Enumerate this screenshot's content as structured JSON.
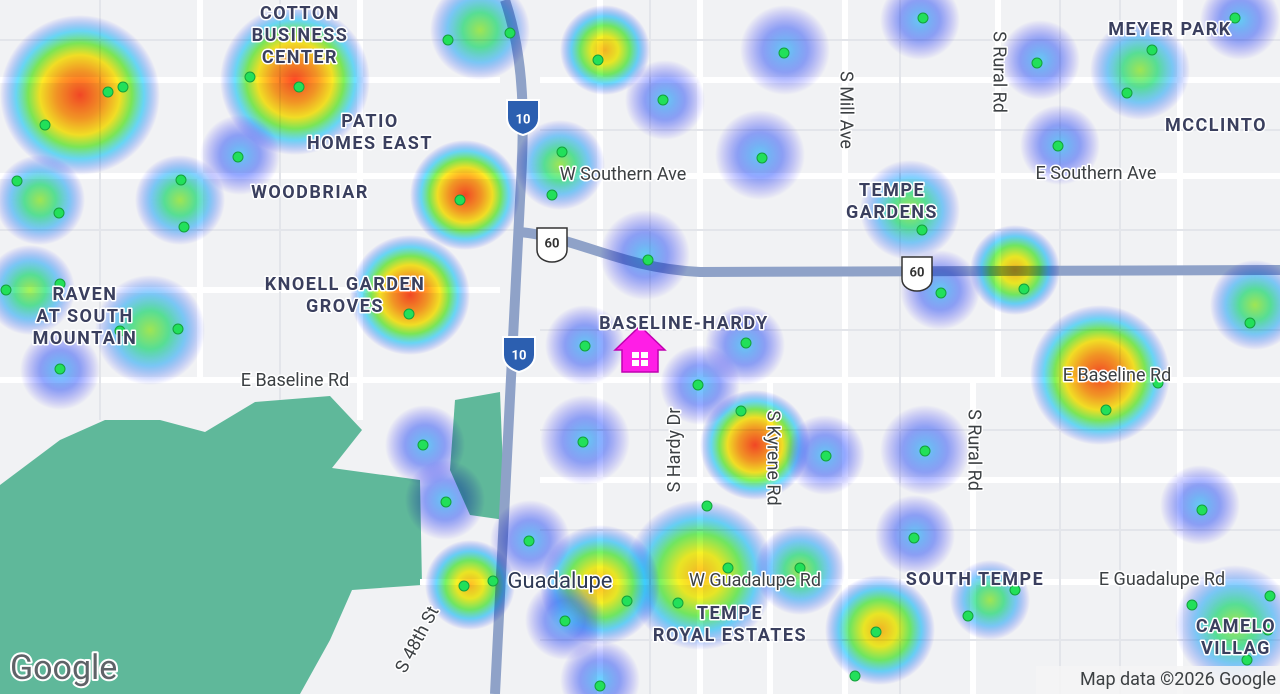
{
  "places": [
    {
      "lines": [
        "COTTON",
        "BUSINESS",
        "CENTER"
      ]
    },
    {
      "lines": [
        "PATIO",
        "HOMES EAST"
      ]
    },
    {
      "lines": [
        "WOODBRIAR"
      ]
    },
    {
      "lines": [
        "KNOELL GARDEN",
        "GROVES"
      ]
    },
    {
      "lines": [
        "RAVEN",
        "AT SOUTH",
        "MOUNTAIN"
      ]
    },
    {
      "lines": [
        "BASELINE-HARDY"
      ]
    },
    {
      "lines": [
        "TEMPE",
        "GARDENS"
      ]
    },
    {
      "lines": [
        "MEYER PARK"
      ]
    },
    {
      "lines": [
        "MCCLINTO"
      ]
    },
    {
      "lines": [
        "SOUTH TEMPE"
      ]
    },
    {
      "lines": [
        "TEMPE",
        "ROYAL ESTATES"
      ]
    },
    {
      "lines": [
        "CAMELO",
        "VILLAG"
      ]
    },
    {
      "lines": [
        "Guadalupe"
      ]
    }
  ],
  "roads": [
    "W Southern Ave",
    "E Southern Ave",
    "E Baseline Rd",
    "E Baseline Rd",
    "W Guadalupe Rd",
    "E Guadalupe Rd",
    "S Mill Ave",
    "S Rural Rd",
    "S Rural Rd",
    "S Hardy Dr",
    "S Kyrene Rd",
    "S 48th St"
  ],
  "shields": [
    "10",
    "10",
    "60",
    "60"
  ],
  "attribution": {
    "logo": "Google",
    "map_data": "Map data ©2026 Google"
  }
}
